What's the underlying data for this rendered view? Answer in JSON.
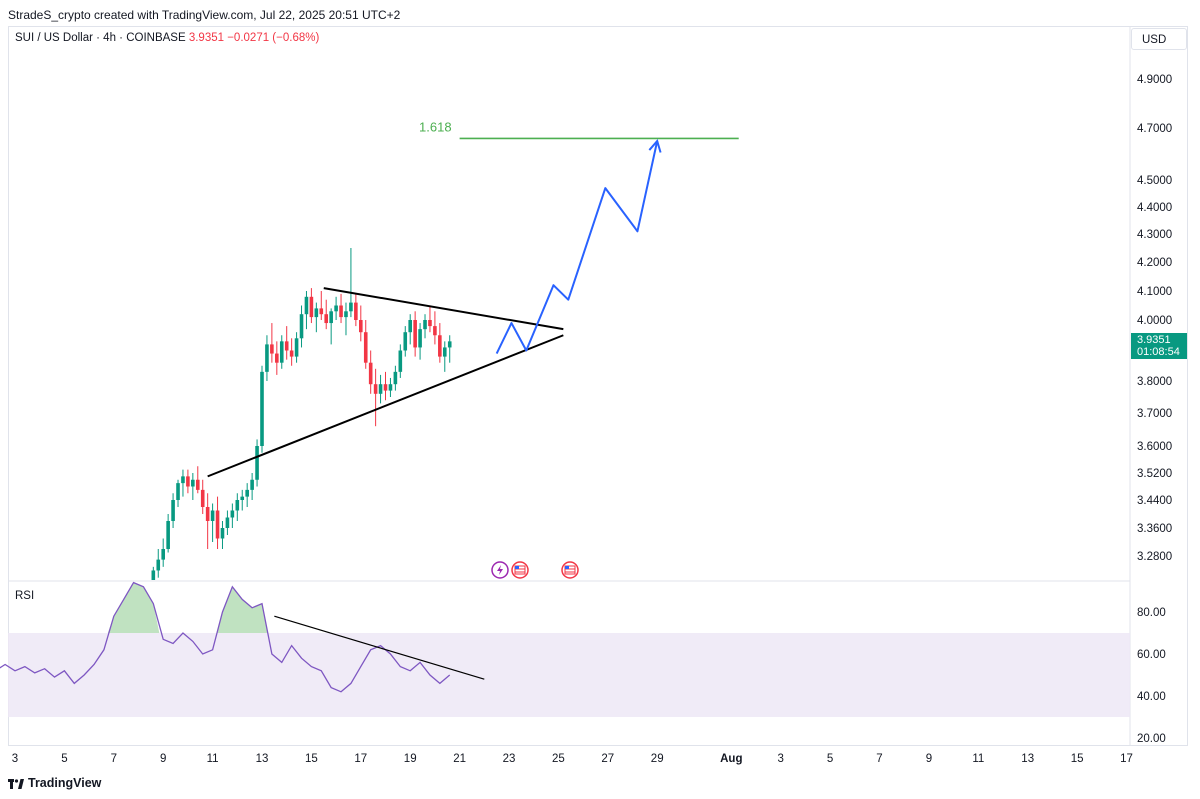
{
  "header": {
    "created_by": "StradeS_crypto created with TradingView.com, Jul 22, 2025 20:51 UTC+2"
  },
  "legend": {
    "symbol": "SUI / US Dollar · 4h · COINBASE",
    "price": "3.9351",
    "change": "−0.0271 (−0.68%)"
  },
  "currency_label": "USD",
  "current_price_tag": {
    "price": "3.9351",
    "countdown": "01:08:54"
  },
  "rsi_label": "RSI",
  "branding": "TradingView",
  "colors": {
    "up": "#089981",
    "down": "#f23645",
    "projection": "#2962ff",
    "fib": "#4caf50",
    "rsi": "#7e57c2"
  },
  "chart_data": [
    {
      "type": "candlestick",
      "price_axis_ticks": [
        4.9,
        4.7,
        4.5,
        4.4,
        4.3,
        4.2,
        4.1,
        4.0,
        3.8,
        3.7,
        3.6,
        3.52,
        3.44,
        3.36,
        3.28
      ],
      "price_axis_labels": [
        "4.9000",
        "4.7000",
        "4.5000",
        "4.4000",
        "4.3000",
        "4.2000",
        "4.1000",
        "4.0000",
        "3.8000",
        "3.7000",
        "3.6000",
        "3.5200",
        "3.4400",
        "3.3600",
        "3.2800"
      ],
      "x_axis_labels": [
        "3",
        "5",
        "7",
        "9",
        "11",
        "13",
        "15",
        "17",
        "19",
        "21",
        "23",
        "25",
        "27",
        "29",
        "Aug",
        "3",
        "5",
        "7",
        "9",
        "11",
        "13",
        "15",
        "17"
      ],
      "x_axis_days": [
        3,
        5,
        7,
        9,
        11,
        13,
        15,
        17,
        19,
        21,
        23,
        25,
        27,
        29,
        32,
        34,
        36,
        38,
        40,
        42,
        44,
        46,
        48
      ],
      "fib_level": {
        "label": "1.618",
        "price": 4.66,
        "from_day": 21.0,
        "to_day": 32.3
      },
      "triangle": {
        "upper": [
          [
            15.5,
            4.11
          ],
          [
            25.2,
            3.97
          ]
        ],
        "lower": [
          [
            10.8,
            3.51
          ],
          [
            25.2,
            3.95
          ]
        ]
      },
      "projection_path": [
        [
          22.5,
          3.89
        ],
        [
          23.1,
          3.99
        ],
        [
          23.7,
          3.9
        ],
        [
          24.8,
          4.12
        ],
        [
          25.4,
          4.07
        ],
        [
          26.9,
          4.47
        ],
        [
          28.2,
          4.31
        ],
        [
          29.0,
          4.65
        ]
      ],
      "candles_desc": "day, open, high, low, close",
      "candles": [
        [
          8.6,
          3.19,
          3.25,
          3.17,
          3.24
        ],
        [
          8.8,
          3.24,
          3.3,
          3.22,
          3.27
        ],
        [
          9.0,
          3.27,
          3.33,
          3.25,
          3.3
        ],
        [
          9.2,
          3.3,
          3.4,
          3.29,
          3.38
        ],
        [
          9.4,
          3.38,
          3.46,
          3.36,
          3.44
        ],
        [
          9.6,
          3.44,
          3.5,
          3.42,
          3.49
        ],
        [
          9.8,
          3.49,
          3.53,
          3.45,
          3.51
        ],
        [
          10.0,
          3.51,
          3.53,
          3.46,
          3.48
        ],
        [
          10.2,
          3.48,
          3.52,
          3.44,
          3.5
        ],
        [
          10.4,
          3.5,
          3.54,
          3.46,
          3.47
        ],
        [
          10.6,
          3.47,
          3.5,
          3.4,
          3.42
        ],
        [
          10.8,
          3.42,
          3.46,
          3.3,
          3.38
        ],
        [
          11.0,
          3.38,
          3.43,
          3.32,
          3.41
        ],
        [
          11.2,
          3.41,
          3.45,
          3.3,
          3.33
        ],
        [
          11.4,
          3.33,
          3.38,
          3.3,
          3.36
        ],
        [
          11.6,
          3.36,
          3.41,
          3.34,
          3.39
        ],
        [
          11.8,
          3.39,
          3.43,
          3.36,
          3.41
        ],
        [
          12.0,
          3.41,
          3.46,
          3.38,
          3.44
        ],
        [
          12.2,
          3.44,
          3.47,
          3.41,
          3.45
        ],
        [
          12.4,
          3.45,
          3.49,
          3.42,
          3.47
        ],
        [
          12.6,
          3.47,
          3.52,
          3.44,
          3.5
        ],
        [
          12.8,
          3.5,
          3.62,
          3.48,
          3.6
        ],
        [
          13.0,
          3.6,
          3.85,
          3.58,
          3.83
        ],
        [
          13.2,
          3.83,
          3.95,
          3.8,
          3.92
        ],
        [
          13.4,
          3.92,
          3.99,
          3.86,
          3.89
        ],
        [
          13.6,
          3.89,
          3.93,
          3.82,
          3.86
        ],
        [
          13.8,
          3.86,
          3.95,
          3.84,
          3.93
        ],
        [
          14.0,
          3.93,
          3.98,
          3.87,
          3.9
        ],
        [
          14.2,
          3.9,
          3.94,
          3.85,
          3.88
        ],
        [
          14.4,
          3.88,
          3.96,
          3.86,
          3.94
        ],
        [
          14.6,
          3.94,
          4.05,
          3.91,
          4.02
        ],
        [
          14.8,
          4.02,
          4.1,
          3.97,
          4.08
        ],
        [
          15.0,
          4.08,
          4.11,
          3.99,
          4.01
        ],
        [
          15.2,
          4.01,
          4.06,
          3.96,
          4.04
        ],
        [
          15.4,
          4.04,
          4.1,
          4.0,
          4.02
        ],
        [
          15.6,
          4.02,
          4.07,
          3.97,
          3.99
        ],
        [
          15.8,
          3.99,
          4.04,
          3.92,
          4.03
        ],
        [
          16.0,
          4.03,
          4.08,
          4.0,
          4.05
        ],
        [
          16.2,
          4.05,
          4.09,
          3.99,
          4.01
        ],
        [
          16.4,
          4.01,
          4.06,
          3.95,
          4.03
        ],
        [
          16.6,
          4.03,
          4.25,
          4.01,
          4.06
        ],
        [
          16.8,
          4.06,
          4.09,
          3.98,
          4.0
        ],
        [
          17.0,
          4.0,
          4.05,
          3.93,
          3.96
        ],
        [
          17.2,
          3.96,
          4.0,
          3.84,
          3.86
        ],
        [
          17.4,
          3.86,
          3.9,
          3.76,
          3.79
        ],
        [
          17.6,
          3.79,
          3.84,
          3.66,
          3.76
        ],
        [
          17.8,
          3.76,
          3.82,
          3.73,
          3.79
        ],
        [
          18.0,
          3.79,
          3.83,
          3.74,
          3.77
        ],
        [
          18.2,
          3.77,
          3.81,
          3.75,
          3.79
        ],
        [
          18.4,
          3.79,
          3.85,
          3.77,
          3.83
        ],
        [
          18.6,
          3.83,
          3.92,
          3.81,
          3.9
        ],
        [
          18.8,
          3.9,
          3.98,
          3.88,
          3.96
        ],
        [
          19.0,
          3.96,
          4.02,
          3.92,
          4.0
        ],
        [
          19.2,
          4.0,
          4.03,
          3.88,
          3.91
        ],
        [
          19.4,
          3.91,
          3.99,
          3.87,
          3.97
        ],
        [
          19.6,
          3.97,
          4.02,
          3.94,
          4.0
        ],
        [
          19.8,
          4.0,
          4.05,
          3.96,
          3.98
        ],
        [
          20.0,
          3.98,
          4.03,
          3.92,
          3.95
        ],
        [
          20.2,
          3.95,
          3.99,
          3.86,
          3.88
        ],
        [
          20.4,
          3.88,
          3.93,
          3.83,
          3.91
        ],
        [
          20.6,
          3.91,
          3.95,
          3.86,
          3.93
        ]
      ]
    },
    {
      "type": "line",
      "name": "RSI",
      "y_axis_labels": [
        "80.00",
        "60.00",
        "40.00",
        "20.00"
      ],
      "y_ticks": [
        80,
        60,
        40,
        20
      ],
      "band": [
        30,
        70
      ],
      "trendline": [
        [
          13.5,
          78
        ],
        [
          22.0,
          48
        ]
      ],
      "x": [
        -0.2,
        0.2,
        0.6,
        1.0,
        1.4,
        1.8,
        2.2,
        2.6,
        3.0,
        3.4,
        3.8,
        4.2,
        4.6,
        5.0,
        5.4,
        5.8,
        6.2,
        6.6,
        7.0,
        7.4,
        7.8,
        8.2,
        8.6,
        9.0,
        9.4,
        9.8,
        10.2,
        10.6,
        11.0,
        11.4,
        11.8,
        12.2,
        12.6,
        13.0,
        13.4,
        13.8,
        14.2,
        14.6,
        15.0,
        15.4,
        15.8,
        16.2,
        16.6,
        17.0,
        17.4,
        17.8,
        18.2,
        18.6,
        19.0,
        19.4,
        19.8,
        20.2,
        20.6
      ],
      "values": [
        68,
        60,
        66,
        58,
        64,
        56,
        52,
        55,
        52,
        54,
        51,
        53,
        49,
        52,
        46,
        50,
        55,
        62,
        78,
        86,
        94,
        92,
        84,
        67,
        65,
        70,
        66,
        60,
        62,
        80,
        92,
        86,
        82,
        84,
        60,
        56,
        64,
        58,
        54,
        52,
        44,
        42,
        46,
        54,
        62,
        64,
        60,
        54,
        52,
        56,
        50,
        46,
        50
      ]
    }
  ]
}
